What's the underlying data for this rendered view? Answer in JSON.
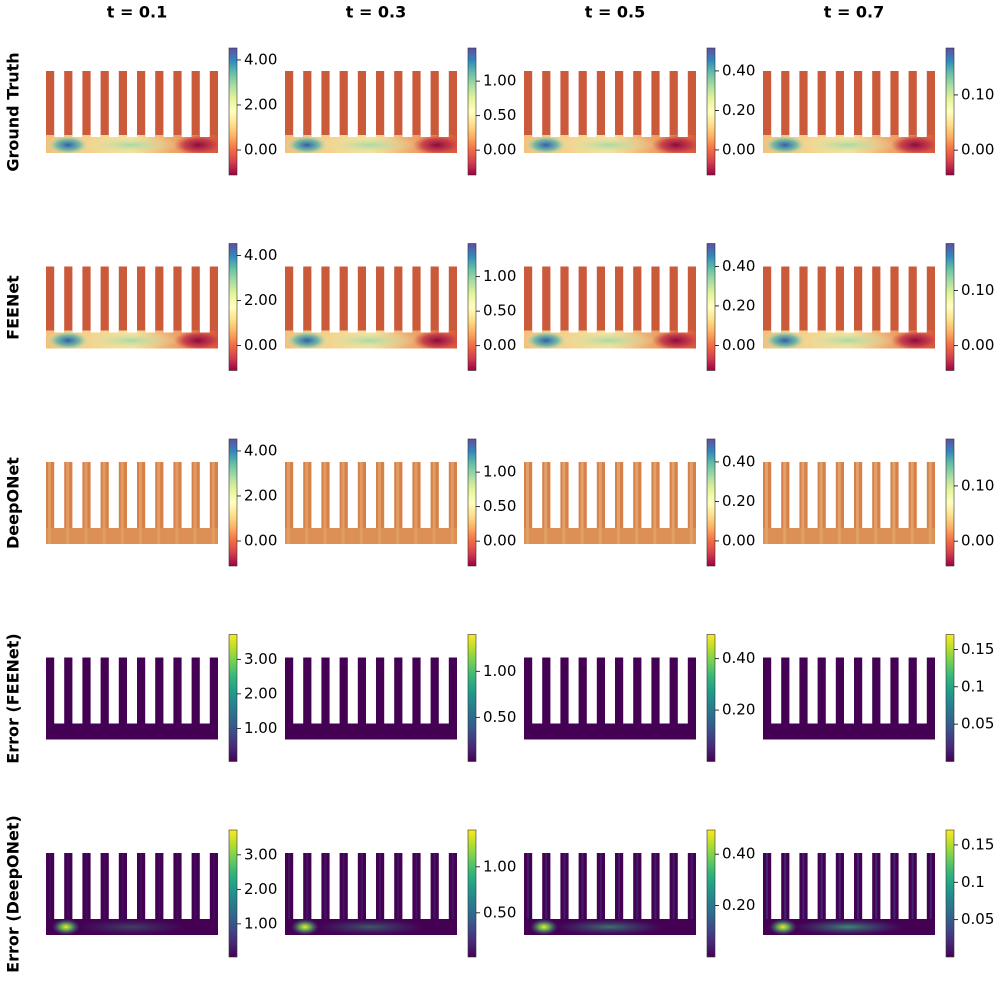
{
  "columns": [
    "t = 0.1",
    "t = 0.3",
    "t = 0.5",
    "t = 0.7"
  ],
  "rows": [
    {
      "label": "Ground Truth",
      "colormap": "Spectral",
      "colorbars": [
        {
          "lim": [
            -1.11,
            4.53
          ],
          "ticks": [
            {
              "value": 0,
              "label": "0.00"
            },
            {
              "value": 2,
              "label": "2.00"
            },
            {
              "value": 4,
              "label": "4.00"
            }
          ]
        },
        {
          "lim": [
            -0.36,
            1.48
          ],
          "ticks": [
            {
              "value": 0,
              "label": "0.00"
            },
            {
              "value": 0.5,
              "label": "0.50"
            },
            {
              "value": 1,
              "label": "1.00"
            }
          ]
        },
        {
          "lim": [
            -0.127,
            0.516
          ],
          "ticks": [
            {
              "value": 0,
              "label": "0.00"
            },
            {
              "value": 0.2,
              "label": "0.20"
            },
            {
              "value": 0.4,
              "label": "0.40"
            }
          ]
        },
        {
          "lim": [
            -0.045,
            0.185
          ],
          "ticks": [
            {
              "value": 0,
              "label": "0.00"
            },
            {
              "value": 0.1,
              "label": "0.10"
            }
          ]
        }
      ]
    },
    {
      "label": "FEENet",
      "colormap": "Spectral",
      "colorbars": [
        {
          "lim": [
            -1.11,
            4.53
          ],
          "ticks": [
            {
              "value": 0,
              "label": "0.00"
            },
            {
              "value": 2,
              "label": "2.00"
            },
            {
              "value": 4,
              "label": "4.00"
            }
          ]
        },
        {
          "lim": [
            -0.36,
            1.48
          ],
          "ticks": [
            {
              "value": 0,
              "label": "0.00"
            },
            {
              "value": 0.5,
              "label": "0.50"
            },
            {
              "value": 1,
              "label": "1.00"
            }
          ]
        },
        {
          "lim": [
            -0.127,
            0.516
          ],
          "ticks": [
            {
              "value": 0,
              "label": "0.00"
            },
            {
              "value": 0.2,
              "label": "0.20"
            },
            {
              "value": 0.4,
              "label": "0.40"
            }
          ]
        },
        {
          "lim": [
            -0.045,
            0.185
          ],
          "ticks": [
            {
              "value": 0,
              "label": "0.00"
            },
            {
              "value": 0.1,
              "label": "0.10"
            }
          ]
        }
      ]
    },
    {
      "label": "DeepONet",
      "colormap": "Spectral",
      "colorbars": [
        {
          "lim": [
            -1.11,
            4.53
          ],
          "ticks": [
            {
              "value": 0,
              "label": "0.00"
            },
            {
              "value": 2,
              "label": "2.00"
            },
            {
              "value": 4,
              "label": "4.00"
            }
          ]
        },
        {
          "lim": [
            -0.36,
            1.48
          ],
          "ticks": [
            {
              "value": 0,
              "label": "0.00"
            },
            {
              "value": 0.5,
              "label": "0.50"
            },
            {
              "value": 1,
              "label": "1.00"
            }
          ]
        },
        {
          "lim": [
            -0.127,
            0.516
          ],
          "ticks": [
            {
              "value": 0,
              "label": "0.00"
            },
            {
              "value": 0.2,
              "label": "0.20"
            },
            {
              "value": 0.4,
              "label": "0.40"
            }
          ]
        },
        {
          "lim": [
            -0.045,
            0.185
          ],
          "ticks": [
            {
              "value": 0,
              "label": "0.00"
            },
            {
              "value": 0.1,
              "label": "0.10"
            }
          ]
        }
      ]
    },
    {
      "label": "Error (FEENet)",
      "colormap": "viridis",
      "colorbars": [
        {
          "lim": [
            0.04,
            3.72
          ],
          "ticks": [
            {
              "value": 1,
              "label": "1.00"
            },
            {
              "value": 2,
              "label": "2.00"
            },
            {
              "value": 3,
              "label": "3.00"
            }
          ]
        },
        {
          "lim": [
            0.02,
            1.4
          ],
          "ticks": [
            {
              "value": 0.5,
              "label": "0.50"
            },
            {
              "value": 1,
              "label": "1.00"
            }
          ]
        },
        {
          "lim": [
            0,
            0.494
          ],
          "ticks": [
            {
              "value": 0.2,
              "label": "0.20"
            },
            {
              "value": 0.4,
              "label": "0.40"
            }
          ]
        },
        {
          "lim": [
            0,
            0.17
          ],
          "ticks": [
            0.05,
            0.1,
            0.15
          ]
        }
      ]
    },
    {
      "label": "Error (DeepONet)",
      "colormap": "viridis",
      "colorbars": [
        {
          "lim": [
            0.04,
            3.72
          ],
          "ticks": [
            {
              "value": 1,
              "label": "1.00"
            },
            {
              "value": 2,
              "label": "2.00"
            },
            {
              "value": 3,
              "label": "3.00"
            }
          ]
        },
        {
          "lim": [
            0.02,
            1.4
          ],
          "ticks": [
            {
              "value": 0.5,
              "label": "0.50"
            },
            {
              "value": 1,
              "label": "1.00"
            }
          ]
        },
        {
          "lim": [
            0,
            0.494
          ],
          "ticks": [
            {
              "value": 0.2,
              "label": "0.20"
            },
            {
              "value": 0.4,
              "label": "0.40"
            }
          ]
        },
        {
          "lim": [
            0,
            0.17
          ],
          "ticks": [
            0.05,
            0.1,
            0.15
          ]
        }
      ]
    }
  ]
}
